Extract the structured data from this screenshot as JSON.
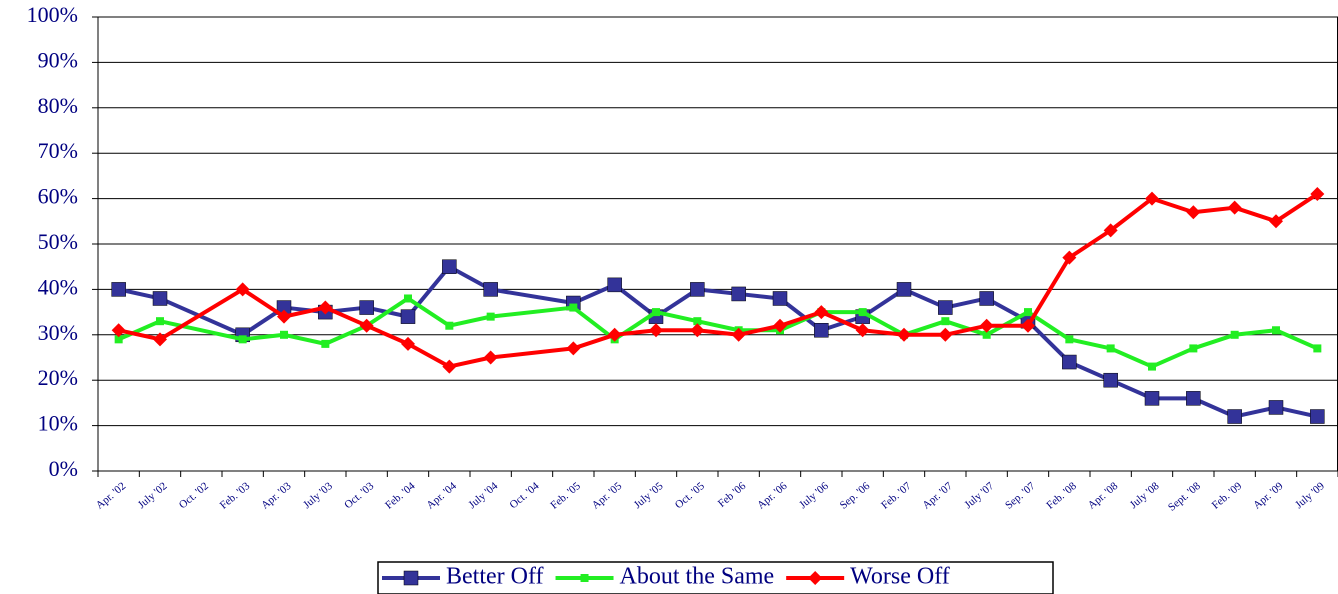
{
  "chart_data": {
    "type": "line",
    "categories": [
      "Apr. '02",
      "July '02",
      "Oct. '02",
      "Feb. '03",
      "Apr. '03",
      "July '03",
      "Oct. '03",
      "Feb. '04",
      "Apr. '04",
      "July '04",
      "Oct. '04",
      "Feb. '05",
      "Apr. '05",
      "July '05",
      "Oct. '05",
      "Feb '06",
      "Apr. '06",
      "July '06",
      "Sep. '06",
      "Feb. '07",
      "Apr. '07",
      "July '07",
      "Sep. '07",
      "Feb. '08",
      "Apr. '08",
      "July '08",
      "Sept. '08",
      "Feb. '09",
      "Apr. '09",
      "July '09"
    ],
    "series": [
      {
        "name": "Better Off",
        "color": "#333399",
        "marker": "square",
        "values": [
          40,
          38,
          null,
          30,
          36,
          35,
          36,
          34,
          45,
          40,
          null,
          37,
          41,
          34,
          40,
          39,
          38,
          31,
          34,
          40,
          36,
          38,
          33,
          24,
          20,
          16,
          16,
          12,
          14,
          12
        ]
      },
      {
        "name": "About the Same",
        "color": "#22ee22",
        "marker": "small-square",
        "values": [
          29,
          33,
          null,
          29,
          30,
          28,
          32,
          38,
          32,
          34,
          null,
          36,
          29,
          35,
          33,
          31,
          31,
          35,
          35,
          30,
          33,
          30,
          35,
          29,
          27,
          23,
          27,
          30,
          31,
          27
        ]
      },
      {
        "name": "Worse Off",
        "color": "#ff0000",
        "marker": "diamond",
        "values": [
          31,
          29,
          null,
          40,
          34,
          36,
          32,
          28,
          23,
          25,
          null,
          27,
          30,
          31,
          31,
          30,
          32,
          35,
          31,
          30,
          30,
          32,
          32,
          47,
          53,
          60,
          57,
          58,
          55,
          61
        ]
      }
    ],
    "ylim": [
      0,
      100
    ],
    "yticks": [
      {
        "value": 0,
        "label": "0%"
      },
      {
        "value": 10,
        "label": "10%"
      },
      {
        "value": 20,
        "label": "20%"
      },
      {
        "value": 30,
        "label": "30%"
      },
      {
        "value": 40,
        "label": "40%"
      },
      {
        "value": 50,
        "label": "50%"
      },
      {
        "value": 60,
        "label": "60%"
      },
      {
        "value": 70,
        "label": "70%"
      },
      {
        "value": 80,
        "label": "80%"
      },
      {
        "value": 90,
        "label": "90%"
      },
      {
        "value": 100,
        "label": "100%"
      }
    ],
    "grid": true,
    "legend": "bottom"
  }
}
